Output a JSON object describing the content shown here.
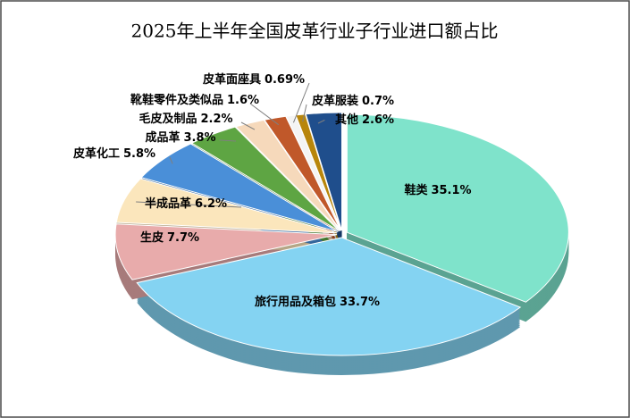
{
  "chart_data": {
    "type": "pie",
    "title": "2025年上半年全国皮革行业子行业进口额占比",
    "categories": [
      "鞋类",
      "旅行用品及箱包",
      "生皮",
      "半成品革",
      "皮革化工",
      "成品革",
      "毛皮及制品",
      "靴鞋零件及类似品",
      "皮革面座具",
      "皮革服装",
      "其他"
    ],
    "values": [
      35.1,
      33.7,
      7.7,
      6.2,
      5.8,
      3.8,
      2.2,
      1.6,
      0.69,
      0.7,
      2.6
    ],
    "value_labels": [
      "35.1%",
      "33.7%",
      "7.7%",
      "6.2%",
      "5.8%",
      "3.8%",
      "2.2%",
      "1.6%",
      "0.69%",
      "0.7%",
      "2.6%"
    ],
    "colors": [
      "#7fe3cb",
      "#84d3f2",
      "#e8abab",
      "#fbe6bc",
      "#4a8fd8",
      "#5ea543",
      "#f6d9bb",
      "#c0582a",
      "#f4f4f4",
      "#b8860b",
      "#1f4e8c"
    ]
  }
}
